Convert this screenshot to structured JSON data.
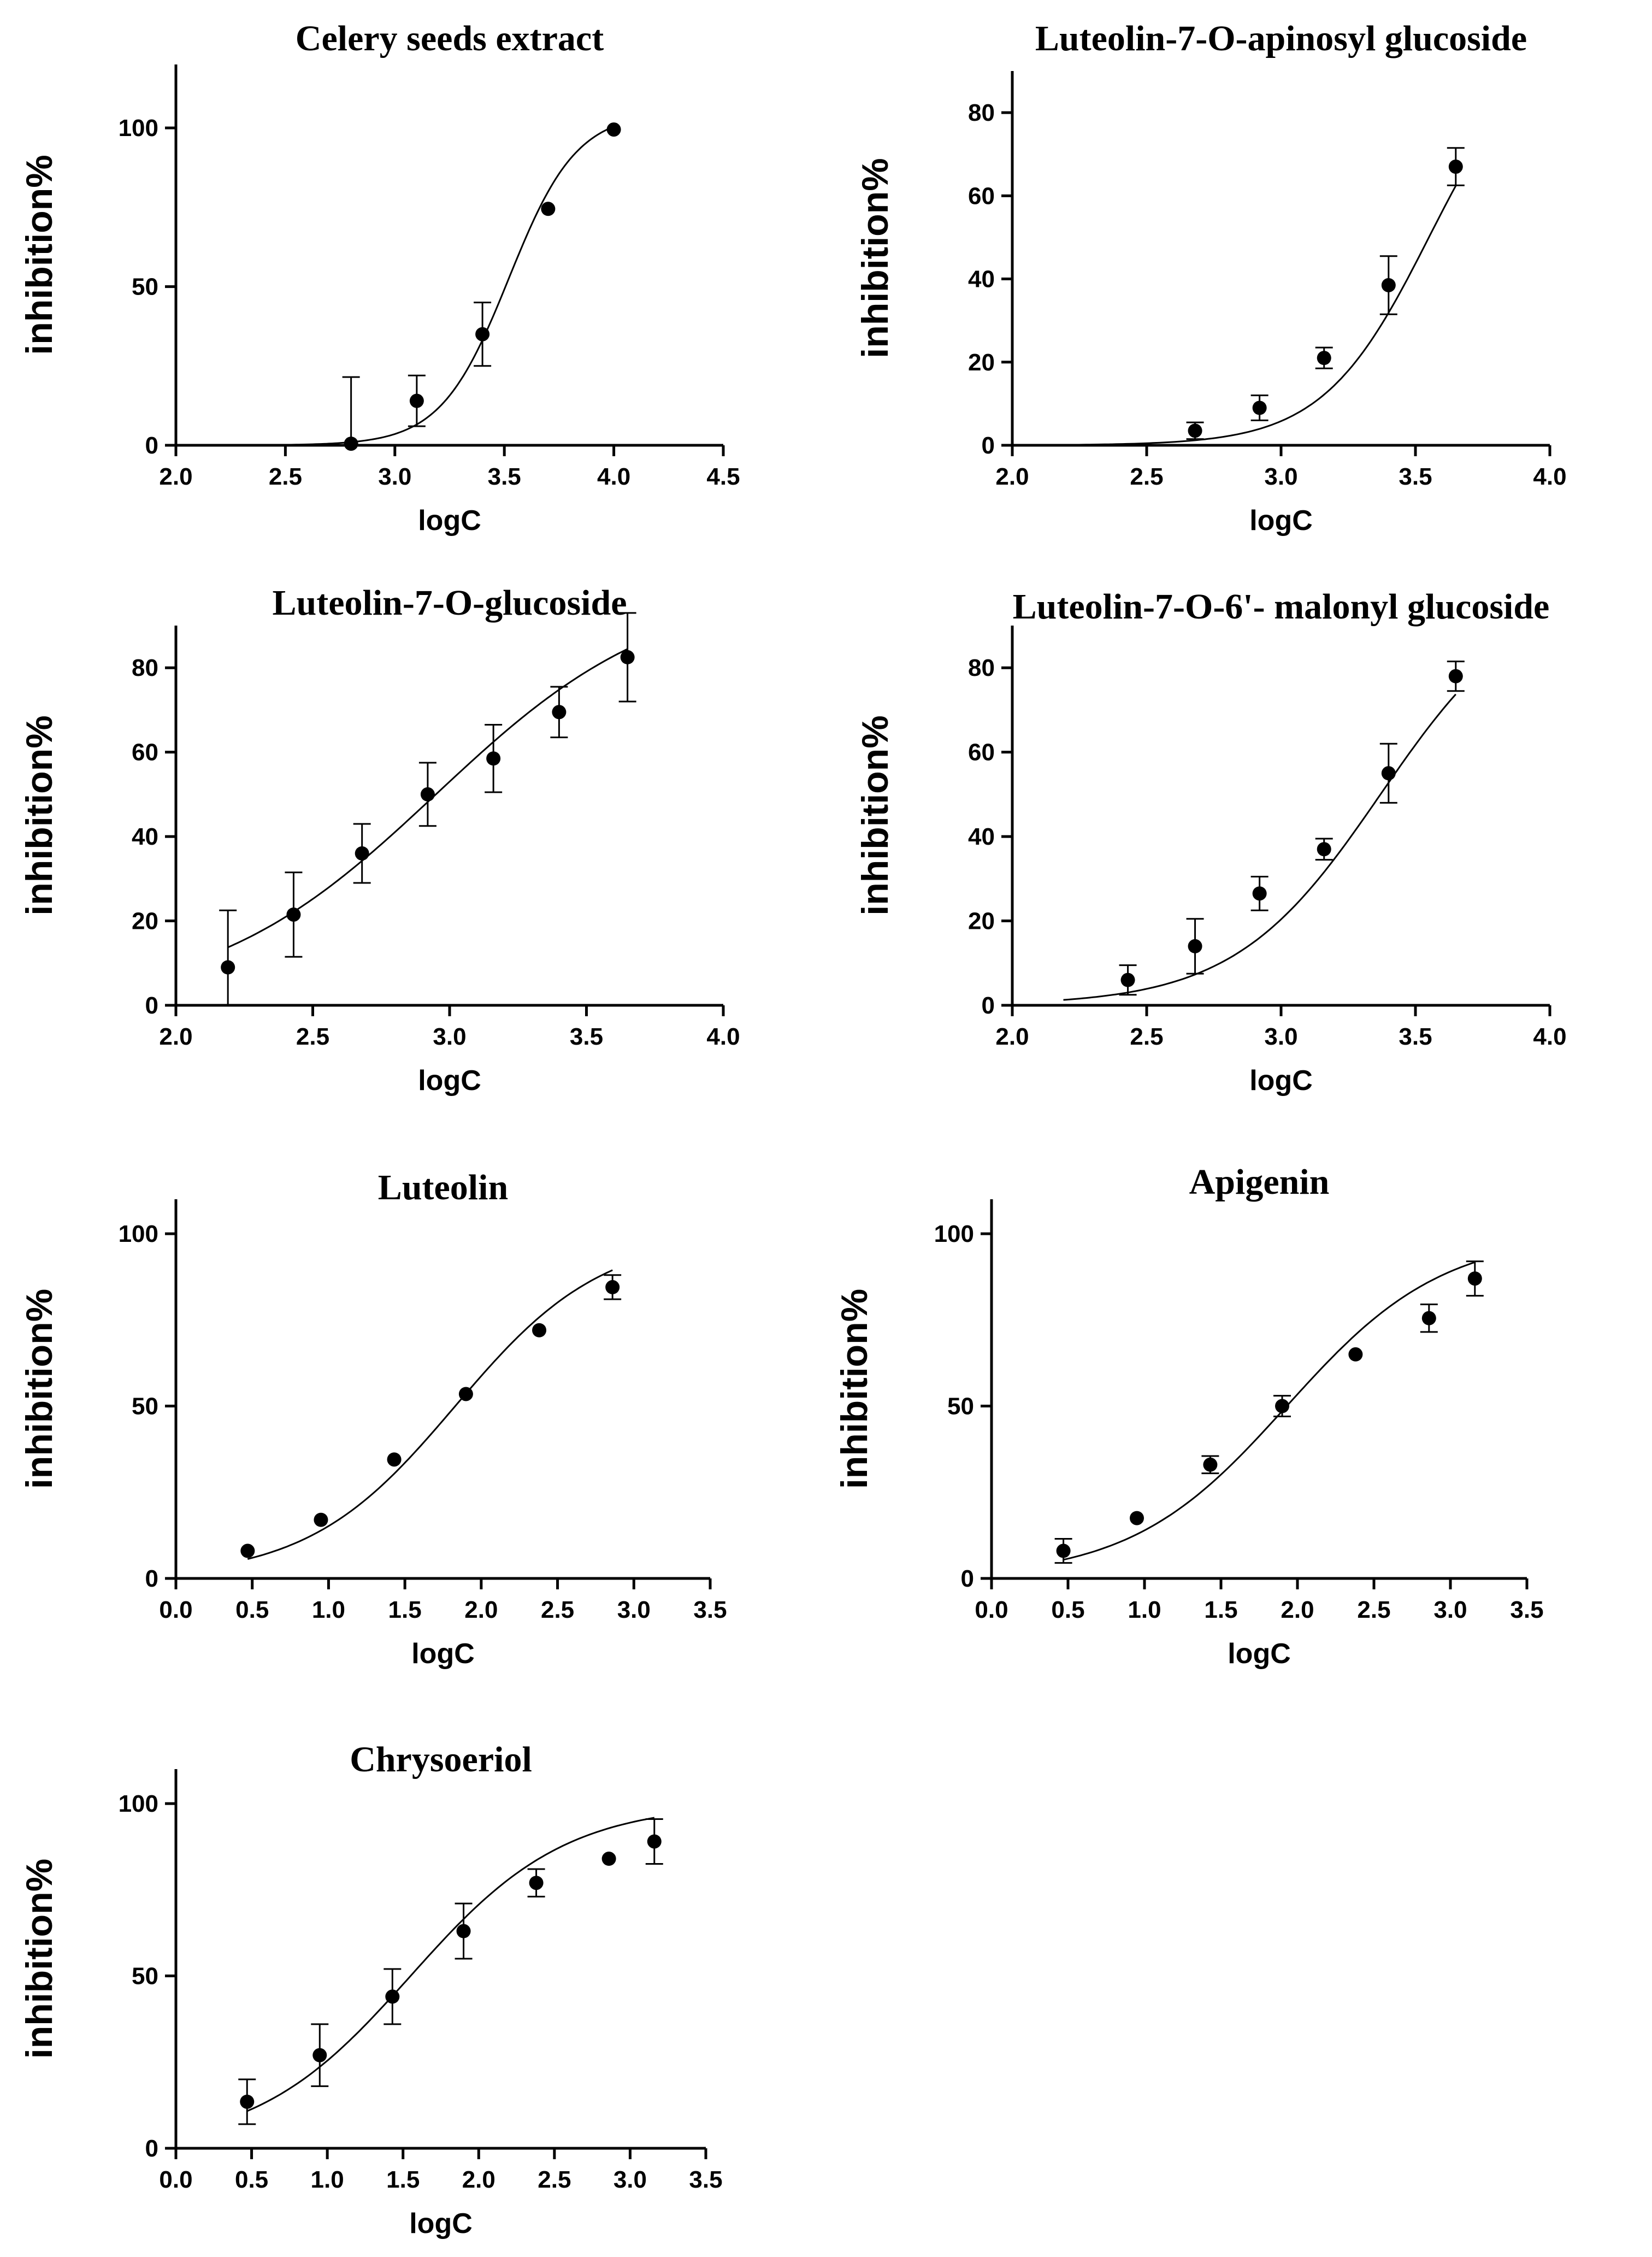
{
  "chart_data": [
    {
      "type": "scatter",
      "title": "Celery seeds extract",
      "xlabel": "logC",
      "ylabel": "inhibition%",
      "xlim": [
        2.0,
        4.5
      ],
      "ylim": [
        0,
        120
      ],
      "xticks": [
        2.0,
        2.5,
        3.0,
        3.5,
        4.0,
        4.5
      ],
      "xtick_labels": [
        "2.0",
        "2.5",
        "3.0",
        "3.5",
        "4.0",
        "4.5"
      ],
      "yticks": [
        0,
        50,
        100
      ],
      "ytick_labels": [
        "0",
        "50",
        "100"
      ],
      "points": [
        {
          "x": 2.8,
          "y": 0.5,
          "err": 21
        },
        {
          "x": 3.1,
          "y": 14,
          "err": 8
        },
        {
          "x": 3.4,
          "y": 35,
          "err": 10
        },
        {
          "x": 3.7,
          "y": 74.5,
          "err": 0
        },
        {
          "x": 4.0,
          "y": 99.5,
          "err": 0
        }
      ],
      "fit": {
        "bottom": 0,
        "top": 105,
        "logEC50": 3.52,
        "hill": 2.8,
        "x_from": 2.5,
        "x_to": 4.0
      }
    },
    {
      "type": "scatter",
      "title": "Luteolin-7-O-apinosyl glucoside",
      "xlabel": "logC",
      "ylabel": "inhibition%",
      "xlim": [
        2.0,
        4.0
      ],
      "ylim": [
        0,
        90
      ],
      "xticks": [
        2.0,
        2.5,
        3.0,
        3.5,
        4.0
      ],
      "xtick_labels": [
        "2.0",
        "2.5",
        "3.0",
        "3.5",
        "4.0"
      ],
      "yticks": [
        0,
        20,
        40,
        60,
        80
      ],
      "ytick_labels": [
        "0",
        "20",
        "40",
        "60",
        "80"
      ],
      "points": [
        {
          "x": 2.68,
          "y": 3.5,
          "err": 2
        },
        {
          "x": 2.92,
          "y": 9,
          "err": 3
        },
        {
          "x": 3.16,
          "y": 21,
          "err": 2.5
        },
        {
          "x": 3.4,
          "y": 38.5,
          "err": 7
        },
        {
          "x": 3.65,
          "y": 67,
          "err": 4.5
        }
      ],
      "fit": {
        "bottom": 0,
        "top": 100,
        "logEC50": 3.55,
        "hill": 2.2,
        "x_from": 2.0,
        "x_to": 3.65
      }
    },
    {
      "type": "scatter",
      "title": "Luteolin-7-O-glucoside",
      "xlabel": "logC",
      "ylabel": "inhibition%",
      "xlim": [
        2.0,
        4.0
      ],
      "ylim": [
        0,
        90
      ],
      "xticks": [
        2.0,
        2.5,
        3.0,
        3.5,
        4.0
      ],
      "xtick_labels": [
        "2.0",
        "2.5",
        "3.0",
        "3.5",
        "4.0"
      ],
      "yticks": [
        0,
        20,
        40,
        60,
        80
      ],
      "ytick_labels": [
        "0",
        "20",
        "40",
        "60",
        "80"
      ],
      "points": [
        {
          "x": 2.19,
          "y": 9,
          "err": 13.5
        },
        {
          "x": 2.43,
          "y": 21.5,
          "err": 10
        },
        {
          "x": 2.68,
          "y": 36,
          "err": 7
        },
        {
          "x": 2.92,
          "y": 50,
          "err": 7.5
        },
        {
          "x": 3.16,
          "y": 58.5,
          "err": 8
        },
        {
          "x": 3.4,
          "y": 69.5,
          "err": 6
        },
        {
          "x": 3.65,
          "y": 82.5,
          "err": 10.5
        }
      ],
      "fit": {
        "bottom": 0,
        "top": 100,
        "logEC50": 2.95,
        "hill": 1.05,
        "x_from": 2.19,
        "x_to": 3.65
      }
    },
    {
      "type": "scatter",
      "title": "Luteolin-7-O-6'- malonyl glucoside",
      "xlabel": "logC",
      "ylabel": "inhibition%",
      "xlim": [
        2.0,
        4.0
      ],
      "ylim": [
        0,
        90
      ],
      "xticks": [
        2.0,
        2.5,
        3.0,
        3.5,
        4.0
      ],
      "xtick_labels": [
        "2.0",
        "2.5",
        "3.0",
        "3.5",
        "4.0"
      ],
      "yticks": [
        0,
        20,
        40,
        60,
        80
      ],
      "ytick_labels": [
        "0",
        "20",
        "40",
        "60",
        "80"
      ],
      "points": [
        {
          "x": 2.43,
          "y": 6,
          "err": 3.5
        },
        {
          "x": 2.68,
          "y": 14,
          "err": 6.5
        },
        {
          "x": 2.92,
          "y": 26.5,
          "err": 4
        },
        {
          "x": 3.16,
          "y": 37,
          "err": 2.5
        },
        {
          "x": 3.4,
          "y": 55,
          "err": 7
        },
        {
          "x": 3.65,
          "y": 78,
          "err": 3.5
        }
      ],
      "fit": {
        "bottom": 0,
        "top": 100,
        "logEC50": 3.37,
        "hill": 1.6,
        "x_from": 2.19,
        "x_to": 3.65
      }
    },
    {
      "type": "scatter",
      "title": "Luteolin",
      "xlabel": "logC",
      "ylabel": "inhibition%",
      "xlim": [
        0.0,
        3.5
      ],
      "ylim": [
        0,
        110
      ],
      "xticks": [
        0.0,
        0.5,
        1.0,
        1.5,
        2.0,
        2.5,
        3.0,
        3.5
      ],
      "xtick_labels": [
        "0.0",
        "0.5",
        "1.0",
        "1.5",
        "2.0",
        "2.5",
        "3.0",
        "3.5"
      ],
      "yticks": [
        0,
        50,
        100
      ],
      "ytick_labels": [
        "0",
        "50",
        "100"
      ],
      "points": [
        {
          "x": 0.47,
          "y": 8,
          "err": 0
        },
        {
          "x": 0.95,
          "y": 17,
          "err": 0
        },
        {
          "x": 1.43,
          "y": 34.5,
          "err": 0
        },
        {
          "x": 1.9,
          "y": 53.5,
          "err": 0
        },
        {
          "x": 2.38,
          "y": 72,
          "err": 0
        },
        {
          "x": 2.86,
          "y": 84.5,
          "err": 3.5
        }
      ],
      "fit": {
        "bottom": 0,
        "top": 100,
        "logEC50": 1.83,
        "hill": 0.9,
        "x_from": 0.47,
        "x_to": 2.86
      }
    },
    {
      "type": "scatter",
      "title": "Apigenin",
      "xlabel": "logC",
      "ylabel": "inhibition%",
      "xlim": [
        0.0,
        3.5
      ],
      "ylim": [
        0,
        110
      ],
      "xticks": [
        0.0,
        0.5,
        1.0,
        1.5,
        2.0,
        2.5,
        3.0,
        3.5
      ],
      "xtick_labels": [
        "0.0",
        "0.5",
        "1.0",
        "1.5",
        "2.0",
        "2.5",
        "3.0",
        "3.5"
      ],
      "yticks": [
        0,
        50,
        100
      ],
      "ytick_labels": [
        "0",
        "50",
        "100"
      ],
      "points": [
        {
          "x": 0.47,
          "y": 8,
          "err": 3.5
        },
        {
          "x": 0.95,
          "y": 17.5,
          "err": 0
        },
        {
          "x": 1.43,
          "y": 33,
          "err": 2.5
        },
        {
          "x": 1.9,
          "y": 50,
          "err": 3
        },
        {
          "x": 2.38,
          "y": 65,
          "err": 0
        },
        {
          "x": 2.86,
          "y": 75.5,
          "err": 4
        },
        {
          "x": 3.16,
          "y": 87,
          "err": 5
        }
      ],
      "fit": {
        "bottom": 0,
        "top": 100,
        "logEC50": 1.93,
        "hill": 0.85,
        "x_from": 0.47,
        "x_to": 3.16
      }
    },
    {
      "type": "scatter",
      "title": "Chrysoeriol",
      "xlabel": "logC",
      "ylabel": "inhibition%",
      "xlim": [
        0.0,
        3.5
      ],
      "ylim": [
        0,
        110
      ],
      "xticks": [
        0.0,
        0.5,
        1.0,
        1.5,
        2.0,
        2.5,
        3.0,
        3.5
      ],
      "xtick_labels": [
        "0.0",
        "0.5",
        "1.0",
        "1.5",
        "2.0",
        "2.5",
        "3.0",
        "3.5"
      ],
      "yticks": [
        0,
        50,
        100
      ],
      "ytick_labels": [
        "0",
        "50",
        "100"
      ],
      "points": [
        {
          "x": 0.47,
          "y": 13.5,
          "err": 6.5
        },
        {
          "x": 0.95,
          "y": 27,
          "err": 9
        },
        {
          "x": 1.43,
          "y": 44,
          "err": 8
        },
        {
          "x": 1.9,
          "y": 63,
          "err": 8
        },
        {
          "x": 2.38,
          "y": 77,
          "err": 4
        },
        {
          "x": 2.86,
          "y": 84,
          "err": 0
        },
        {
          "x": 3.16,
          "y": 89,
          "err": 6.5
        }
      ],
      "fit": {
        "bottom": 0,
        "top": 100,
        "logEC50": 1.55,
        "hill": 0.85,
        "x_from": 0.47,
        "x_to": 3.16
      }
    }
  ]
}
